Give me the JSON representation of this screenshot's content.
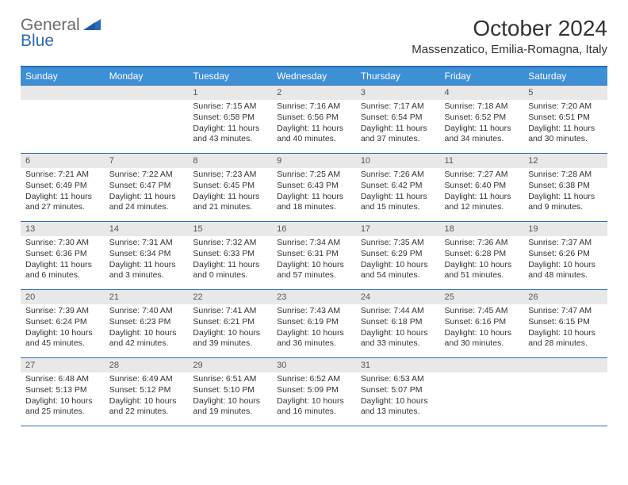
{
  "logo": {
    "general": "General",
    "blue": "Blue"
  },
  "title": "October 2024",
  "location": "Massenzatico, Emilia-Romagna, Italy",
  "day_headers": [
    "Sunday",
    "Monday",
    "Tuesday",
    "Wednesday",
    "Thursday",
    "Friday",
    "Saturday"
  ],
  "colors": {
    "header_bg": "#3d8fd6",
    "border": "#2a6db5",
    "daybar_bg": "#e8e8e8",
    "text": "#333333",
    "logo_gray": "#6a6a6a",
    "logo_blue": "#2a6db5"
  },
  "weeks": [
    [
      {
        "num": "",
        "sunrise": "",
        "sunset": "",
        "daylight": ""
      },
      {
        "num": "",
        "sunrise": "",
        "sunset": "",
        "daylight": ""
      },
      {
        "num": "1",
        "sunrise": "Sunrise: 7:15 AM",
        "sunset": "Sunset: 6:58 PM",
        "daylight": "Daylight: 11 hours and 43 minutes."
      },
      {
        "num": "2",
        "sunrise": "Sunrise: 7:16 AM",
        "sunset": "Sunset: 6:56 PM",
        "daylight": "Daylight: 11 hours and 40 minutes."
      },
      {
        "num": "3",
        "sunrise": "Sunrise: 7:17 AM",
        "sunset": "Sunset: 6:54 PM",
        "daylight": "Daylight: 11 hours and 37 minutes."
      },
      {
        "num": "4",
        "sunrise": "Sunrise: 7:18 AM",
        "sunset": "Sunset: 6:52 PM",
        "daylight": "Daylight: 11 hours and 34 minutes."
      },
      {
        "num": "5",
        "sunrise": "Sunrise: 7:20 AM",
        "sunset": "Sunset: 6:51 PM",
        "daylight": "Daylight: 11 hours and 30 minutes."
      }
    ],
    [
      {
        "num": "6",
        "sunrise": "Sunrise: 7:21 AM",
        "sunset": "Sunset: 6:49 PM",
        "daylight": "Daylight: 11 hours and 27 minutes."
      },
      {
        "num": "7",
        "sunrise": "Sunrise: 7:22 AM",
        "sunset": "Sunset: 6:47 PM",
        "daylight": "Daylight: 11 hours and 24 minutes."
      },
      {
        "num": "8",
        "sunrise": "Sunrise: 7:23 AM",
        "sunset": "Sunset: 6:45 PM",
        "daylight": "Daylight: 11 hours and 21 minutes."
      },
      {
        "num": "9",
        "sunrise": "Sunrise: 7:25 AM",
        "sunset": "Sunset: 6:43 PM",
        "daylight": "Daylight: 11 hours and 18 minutes."
      },
      {
        "num": "10",
        "sunrise": "Sunrise: 7:26 AM",
        "sunset": "Sunset: 6:42 PM",
        "daylight": "Daylight: 11 hours and 15 minutes."
      },
      {
        "num": "11",
        "sunrise": "Sunrise: 7:27 AM",
        "sunset": "Sunset: 6:40 PM",
        "daylight": "Daylight: 11 hours and 12 minutes."
      },
      {
        "num": "12",
        "sunrise": "Sunrise: 7:28 AM",
        "sunset": "Sunset: 6:38 PM",
        "daylight": "Daylight: 11 hours and 9 minutes."
      }
    ],
    [
      {
        "num": "13",
        "sunrise": "Sunrise: 7:30 AM",
        "sunset": "Sunset: 6:36 PM",
        "daylight": "Daylight: 11 hours and 6 minutes."
      },
      {
        "num": "14",
        "sunrise": "Sunrise: 7:31 AM",
        "sunset": "Sunset: 6:34 PM",
        "daylight": "Daylight: 11 hours and 3 minutes."
      },
      {
        "num": "15",
        "sunrise": "Sunrise: 7:32 AM",
        "sunset": "Sunset: 6:33 PM",
        "daylight": "Daylight: 11 hours and 0 minutes."
      },
      {
        "num": "16",
        "sunrise": "Sunrise: 7:34 AM",
        "sunset": "Sunset: 6:31 PM",
        "daylight": "Daylight: 10 hours and 57 minutes."
      },
      {
        "num": "17",
        "sunrise": "Sunrise: 7:35 AM",
        "sunset": "Sunset: 6:29 PM",
        "daylight": "Daylight: 10 hours and 54 minutes."
      },
      {
        "num": "18",
        "sunrise": "Sunrise: 7:36 AM",
        "sunset": "Sunset: 6:28 PM",
        "daylight": "Daylight: 10 hours and 51 minutes."
      },
      {
        "num": "19",
        "sunrise": "Sunrise: 7:37 AM",
        "sunset": "Sunset: 6:26 PM",
        "daylight": "Daylight: 10 hours and 48 minutes."
      }
    ],
    [
      {
        "num": "20",
        "sunrise": "Sunrise: 7:39 AM",
        "sunset": "Sunset: 6:24 PM",
        "daylight": "Daylight: 10 hours and 45 minutes."
      },
      {
        "num": "21",
        "sunrise": "Sunrise: 7:40 AM",
        "sunset": "Sunset: 6:23 PM",
        "daylight": "Daylight: 10 hours and 42 minutes."
      },
      {
        "num": "22",
        "sunrise": "Sunrise: 7:41 AM",
        "sunset": "Sunset: 6:21 PM",
        "daylight": "Daylight: 10 hours and 39 minutes."
      },
      {
        "num": "23",
        "sunrise": "Sunrise: 7:43 AM",
        "sunset": "Sunset: 6:19 PM",
        "daylight": "Daylight: 10 hours and 36 minutes."
      },
      {
        "num": "24",
        "sunrise": "Sunrise: 7:44 AM",
        "sunset": "Sunset: 6:18 PM",
        "daylight": "Daylight: 10 hours and 33 minutes."
      },
      {
        "num": "25",
        "sunrise": "Sunrise: 7:45 AM",
        "sunset": "Sunset: 6:16 PM",
        "daylight": "Daylight: 10 hours and 30 minutes."
      },
      {
        "num": "26",
        "sunrise": "Sunrise: 7:47 AM",
        "sunset": "Sunset: 6:15 PM",
        "daylight": "Daylight: 10 hours and 28 minutes."
      }
    ],
    [
      {
        "num": "27",
        "sunrise": "Sunrise: 6:48 AM",
        "sunset": "Sunset: 5:13 PM",
        "daylight": "Daylight: 10 hours and 25 minutes."
      },
      {
        "num": "28",
        "sunrise": "Sunrise: 6:49 AM",
        "sunset": "Sunset: 5:12 PM",
        "daylight": "Daylight: 10 hours and 22 minutes."
      },
      {
        "num": "29",
        "sunrise": "Sunrise: 6:51 AM",
        "sunset": "Sunset: 5:10 PM",
        "daylight": "Daylight: 10 hours and 19 minutes."
      },
      {
        "num": "30",
        "sunrise": "Sunrise: 6:52 AM",
        "sunset": "Sunset: 5:09 PM",
        "daylight": "Daylight: 10 hours and 16 minutes."
      },
      {
        "num": "31",
        "sunrise": "Sunrise: 6:53 AM",
        "sunset": "Sunset: 5:07 PM",
        "daylight": "Daylight: 10 hours and 13 minutes."
      },
      {
        "num": "",
        "sunrise": "",
        "sunset": "",
        "daylight": ""
      },
      {
        "num": "",
        "sunrise": "",
        "sunset": "",
        "daylight": ""
      }
    ]
  ]
}
